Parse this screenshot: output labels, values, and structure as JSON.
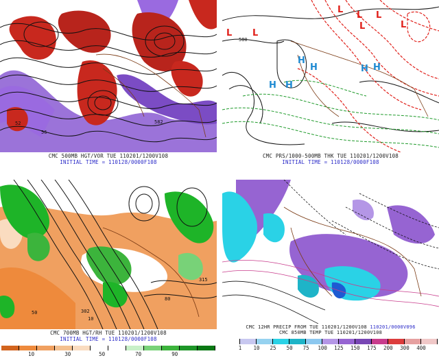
{
  "panels": [
    {
      "id": "tl",
      "caption_line1": "CMC 500MB HGT/VOR TUE 110201/1200V108",
      "caption_line2": "INITIAL TIME = 110128/0000F108",
      "contour_labels": [
        "582",
        "52",
        "56"
      ]
    },
    {
      "id": "tr",
      "caption_line1": "CMC PRS/1000-500MB THK TUE 110201/1200V108",
      "caption_line2": "INITIAL TIME = 110128/0000F108",
      "contour_labels": [
        "580"
      ],
      "highs": [
        "H",
        "H",
        "H",
        "H",
        "H",
        "H"
      ],
      "lows": [
        "L",
        "L",
        "L",
        "L",
        "L",
        "L",
        "L"
      ]
    },
    {
      "id": "bl",
      "caption_line1": "CMC 700MB HGT/RH TUE 110201/1200V108",
      "caption_line2": "INITIAL TIME = 110128/0000F108",
      "contour_labels": [
        "315",
        "10",
        "50",
        "80",
        "302"
      ],
      "colorbar_ticks": [
        "10",
        "30",
        "50",
        "70",
        "90"
      ]
    },
    {
      "id": "br",
      "caption_line1": "CMC 12HR PRECIP FROM TUE 110201/1200V108",
      "caption_line1_extra": "110201/0000V096",
      "caption_line2": "CMC 850MB TEMP TUE 110201/1200V108",
      "colorbar_ticks": [
        "1",
        "10",
        "25",
        "50",
        "75",
        "100",
        "125",
        "150",
        "175",
        "200",
        "300",
        "400"
      ]
    }
  ],
  "colors": {
    "vorticity_red": "#c8281e",
    "vorticity_purple": "#8a5ad2",
    "thickness_red": "#e0201a",
    "thickness_green": "#1e9a2a",
    "high_blue": "#1e8ad2",
    "rh_green": "#1eb428",
    "rh_orange": "#ee9a50",
    "precip_cyan": "#2ad2e6",
    "precip_purple": "#9664d2",
    "caption_blue": "#2a2ac8"
  },
  "rh_colorbar": [
    "#d2641e",
    "#ee8a3c",
    "#f0a060",
    "#f4c090",
    "#fadcc0",
    "#ffffff",
    "#ffffff",
    "#c8f0c8",
    "#78d278",
    "#3cb43c",
    "#1e9628",
    "#0a7814"
  ],
  "precip_colorbar": [
    "#ffffff",
    "#c8c8f0",
    "#96d2f0",
    "#2ad2e6",
    "#1eb4c8",
    "#8cc8f0",
    "#b496e6",
    "#9664d2",
    "#7846b4",
    "#c83c8c",
    "#dc3c3c",
    "#e6a0a0",
    "#f0c8c8"
  ]
}
